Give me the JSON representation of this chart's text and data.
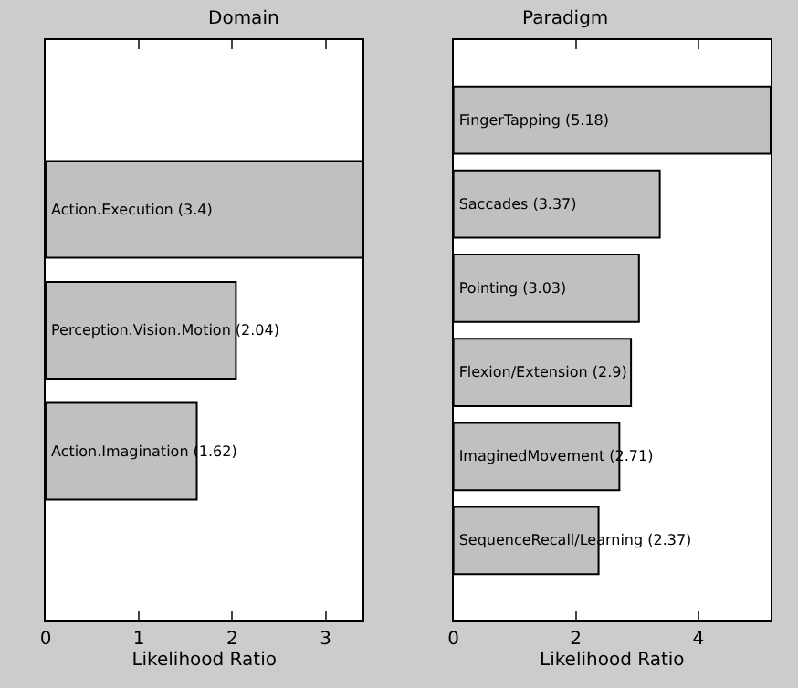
{
  "chart_data": [
    {
      "type": "bar",
      "orientation": "horizontal",
      "title": "Domain",
      "xlabel": "Likelihood Ratio",
      "categories": [
        "Action.Execution (3.4)",
        "Perception.Vision.Motion (2.04)",
        "Action.Imagination (1.62)"
      ],
      "values": [
        3.4,
        2.04,
        1.62
      ],
      "color": "#c0c0c0",
      "xlim": [
        0,
        3.4
      ],
      "xticks": [
        0,
        1,
        2,
        3
      ],
      "tick_labels": "x"
    },
    {
      "type": "bar",
      "orientation": "horizontal",
      "title": "Paradigm",
      "xlabel": "Likelihood Ratio",
      "categories": [
        "FingerTapping (5.18)",
        "Saccades (3.37)",
        "Pointing (3.03)",
        "Flexion/Extension (2.9)",
        "ImaginedMovement (2.71)",
        "SequenceRecall/Learning (2.37)"
      ],
      "values": [
        5.18,
        3.37,
        3.03,
        2.9,
        2.71,
        2.37
      ],
      "color": "#c0c0c0",
      "xlim": [
        0,
        5.18
      ],
      "xticks": [
        0,
        2,
        4
      ],
      "tick_labels": "x"
    }
  ]
}
